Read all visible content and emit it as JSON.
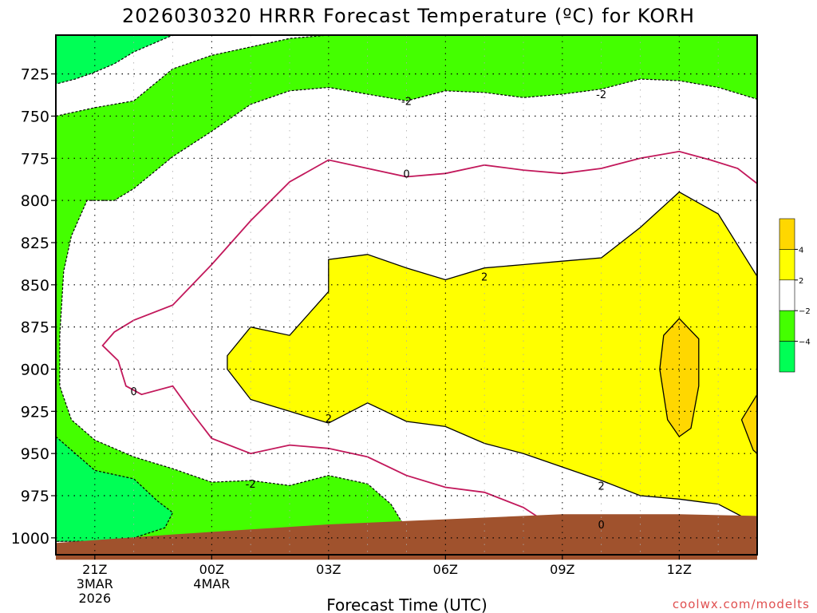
{
  "chart_data": {
    "type": "contour",
    "title": "2026030320 HRRR Forecast Temperature (ºC) for KORH",
    "xlabel": "Forecast Time (UTC)",
    "ylabel": "",
    "credit": "coolwx.com/modelts",
    "x_ticks": [
      {
        "hour": 21,
        "label": "21Z",
        "sub": [
          "3MAR",
          "2026"
        ]
      },
      {
        "hour": 24,
        "label": "00Z",
        "sub": [
          "4MAR"
        ]
      },
      {
        "hour": 27,
        "label": "03Z",
        "sub": []
      },
      {
        "hour": 30,
        "label": "06Z",
        "sub": []
      },
      {
        "hour": 33,
        "label": "09Z",
        "sub": []
      },
      {
        "hour": 36,
        "label": "12Z",
        "sub": []
      }
    ],
    "xlim": [
      20,
      38
    ],
    "y_ticks": [
      725,
      750,
      775,
      800,
      825,
      850,
      875,
      900,
      925,
      950,
      975,
      1000
    ],
    "ylim": [
      1010,
      702
    ],
    "y_scale": "linear-inverted",
    "grid": true,
    "colorbar": {
      "levels": [
        {
          "label": "",
          "color": "#ffd700"
        },
        {
          "label": "4",
          "color": "#ffff00"
        },
        {
          "label": "2",
          "color": "#ffffff"
        },
        {
          "label": "−2",
          "color": "#44ff00"
        },
        {
          "label": "−4",
          "color": "#00ff55"
        }
      ]
    },
    "contour_labels": [
      {
        "text": "-2",
        "x": 29.0,
        "p": 741
      },
      {
        "text": "-2",
        "x": 34.0,
        "p": 737
      },
      {
        "text": "0",
        "x": 29.0,
        "p": 784
      },
      {
        "text": "0",
        "x": 22.0,
        "p": 913
      },
      {
        "text": "0",
        "x": 34.0,
        "p": 992
      },
      {
        "text": "2",
        "x": 31.0,
        "p": 845
      },
      {
        "text": "2",
        "x": 27.0,
        "p": 929
      },
      {
        "text": "2",
        "x": 34.0,
        "p": 969
      },
      {
        "text": "-2",
        "x": 25.0,
        "p": 968
      }
    ],
    "regions": {
      "minus2_to_minus4": {
        "color": "#44ff00"
      },
      "below_minus4": {
        "color": "#00ff55"
      },
      "zero_to_minus2": {
        "color": "#ffffff"
      },
      "two_to_four": {
        "color": "#ffff00"
      },
      "above_four": {
        "color": "#ffd700"
      },
      "ground": {
        "color": "#a0522d"
      }
    },
    "series": [
      {
        "name": "",
        "role": "outer-cold-boundary",
        "color": "#44ff00",
        "points": [
          [
            20,
            750
          ],
          [
            21,
            745
          ],
          [
            22,
            741
          ],
          [
            23,
            722
          ],
          [
            24,
            714
          ],
          [
            25,
            709
          ],
          [
            26,
            704
          ],
          [
            27,
            702
          ],
          [
            38,
            702
          ],
          [
            38,
            740
          ],
          [
            37,
            733
          ],
          [
            36,
            729
          ],
          [
            35,
            728
          ],
          [
            34,
            734
          ],
          [
            33,
            737
          ],
          [
            32,
            739
          ],
          [
            31,
            736
          ],
          [
            30,
            735
          ],
          [
            29,
            741
          ],
          [
            28,
            737
          ],
          [
            27,
            733
          ],
          [
            26,
            735
          ],
          [
            25,
            743
          ],
          [
            24,
            759
          ],
          [
            23,
            774
          ],
          [
            22,
            793
          ],
          [
            21.5,
            800
          ],
          [
            20.8,
            800
          ],
          [
            20.4,
            821
          ],
          [
            20.2,
            842
          ],
          [
            20.1,
            880
          ],
          [
            20.1,
            910
          ],
          [
            20.4,
            930
          ],
          [
            21,
            942
          ],
          [
            22,
            952
          ],
          [
            23,
            959
          ],
          [
            24,
            967
          ],
          [
            25,
            966
          ],
          [
            26,
            969
          ],
          [
            27,
            963
          ],
          [
            28,
            968
          ],
          [
            28.6,
            980
          ],
          [
            29,
            995
          ],
          [
            30,
            994
          ],
          [
            30.5,
            993
          ],
          [
            38,
            993
          ],
          [
            38,
            1001
          ],
          [
            20,
            1002
          ]
        ]
      },
      {
        "name": "",
        "role": "inner-cold-pocket",
        "color": "#00ff55",
        "points": [
          [
            20,
            702
          ],
          [
            23,
            702
          ],
          [
            22,
            712
          ],
          [
            21.5,
            719
          ],
          [
            21,
            724
          ],
          [
            20.5,
            728
          ],
          [
            20,
            731
          ]
        ]
      },
      {
        "name": "",
        "role": "lower-cold-pocket",
        "color": "#00ff55",
        "points": [
          [
            20,
            940
          ],
          [
            21,
            960
          ],
          [
            22,
            965
          ],
          [
            22.6,
            978
          ],
          [
            23,
            985
          ],
          [
            22.8,
            994
          ],
          [
            22,
            1000
          ],
          [
            21,
            1002
          ],
          [
            20,
            1002
          ]
        ]
      },
      {
        "name": "",
        "role": "warm-core",
        "color": "#ffff00",
        "points": [
          [
            24.4,
            892
          ],
          [
            25,
            875
          ],
          [
            26,
            880
          ],
          [
            27,
            854
          ],
          [
            27,
            835
          ],
          [
            28,
            832
          ],
          [
            29,
            840
          ],
          [
            30,
            847
          ],
          [
            31,
            840
          ],
          [
            32,
            838
          ],
          [
            33,
            836
          ],
          [
            34,
            834
          ],
          [
            35,
            816
          ],
          [
            36,
            795
          ],
          [
            37,
            808
          ],
          [
            38,
            845
          ],
          [
            38,
            992
          ],
          [
            37,
            980
          ],
          [
            36,
            977
          ],
          [
            35,
            975
          ],
          [
            34,
            966
          ],
          [
            33,
            958
          ],
          [
            32,
            950
          ],
          [
            31,
            944
          ],
          [
            30,
            934
          ],
          [
            29,
            931
          ],
          [
            28,
            920
          ],
          [
            27,
            932
          ],
          [
            26,
            925
          ],
          [
            25,
            918
          ],
          [
            24.4,
            900
          ]
        ]
      },
      {
        "name": "",
        "role": "warm-peak",
        "color": "#ffd700",
        "points": [
          [
            36,
            870
          ],
          [
            36.5,
            882
          ],
          [
            36.5,
            910
          ],
          [
            36.3,
            935
          ],
          [
            36,
            940
          ],
          [
            35.7,
            930
          ],
          [
            35.5,
            900
          ],
          [
            35.6,
            880
          ]
        ]
      },
      {
        "name": "",
        "role": "warm-edge",
        "color": "#ffd700",
        "points": [
          [
            38,
            915
          ],
          [
            37.6,
            930
          ],
          [
            37.9,
            948
          ],
          [
            38,
            950
          ]
        ]
      },
      {
        "name": "",
        "role": "zero-isotherm",
        "color": "#c2185b",
        "points": [
          [
            38,
            790
          ],
          [
            37.5,
            781
          ],
          [
            36.8,
            776
          ],
          [
            36,
            771
          ],
          [
            35,
            775
          ],
          [
            34,
            781
          ],
          [
            33,
            784
          ],
          [
            32,
            782
          ],
          [
            31,
            779
          ],
          [
            30,
            784
          ],
          [
            29,
            786
          ],
          [
            28,
            781
          ],
          [
            27,
            776
          ],
          [
            26,
            789
          ],
          [
            25,
            812
          ],
          [
            24,
            838
          ],
          [
            23,
            862
          ],
          [
            22,
            871
          ],
          [
            21.5,
            878
          ],
          [
            21.2,
            886
          ],
          [
            21.6,
            895
          ],
          [
            21.8,
            910
          ],
          [
            22.2,
            915
          ],
          [
            23,
            910
          ],
          [
            23.5,
            926
          ],
          [
            24,
            941
          ],
          [
            25,
            950
          ],
          [
            26,
            945
          ],
          [
            27,
            947
          ],
          [
            28,
            952
          ],
          [
            29,
            963
          ],
          [
            30,
            970
          ],
          [
            31,
            973
          ],
          [
            32,
            982
          ],
          [
            33,
            997
          ],
          [
            34,
            996
          ],
          [
            35,
            994
          ],
          [
            36,
            991
          ],
          [
            37,
            993
          ],
          [
            37.2,
            997
          ],
          [
            36,
            1000
          ],
          [
            35,
            999
          ],
          [
            34,
            1000
          ]
        ]
      }
    ],
    "ground": [
      [
        20,
        1003
      ],
      [
        23,
        998
      ],
      [
        27,
        992
      ],
      [
        30,
        989
      ],
      [
        33,
        986
      ],
      [
        36,
        986
      ],
      [
        38,
        987
      ],
      [
        38,
        1013
      ],
      [
        20,
        1013
      ]
    ]
  }
}
